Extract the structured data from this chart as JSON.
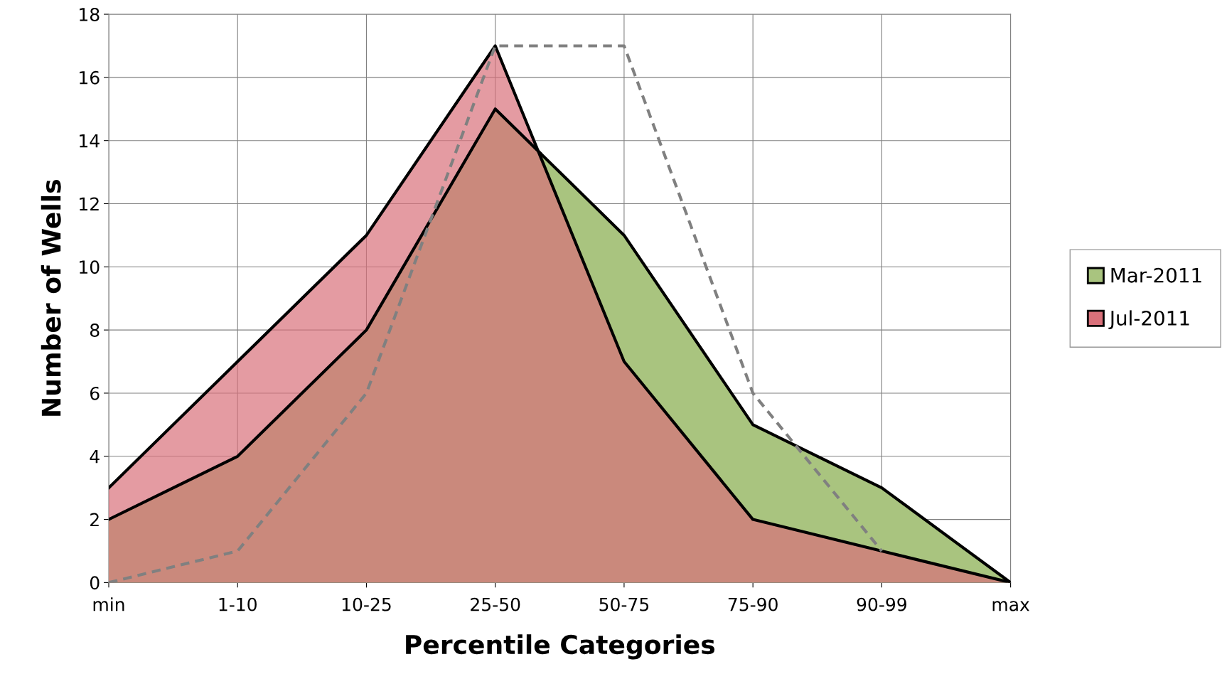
{
  "chart_data": {
    "type": "area",
    "xlabel": "Percentile Categories",
    "ylabel": "Number of Wells",
    "categories": [
      "min",
      "1-10",
      "10-25",
      "25-50",
      "50-75",
      "75-90",
      "90-99",
      "max"
    ],
    "series": [
      {
        "name": "Mar-2011",
        "color": "#a9c47f",
        "values": [
          2,
          4,
          8,
          15,
          11,
          5,
          3,
          0
        ]
      },
      {
        "name": "Jul-2011",
        "color": "#d9707a",
        "values": [
          3,
          7,
          11,
          17,
          7,
          2,
          1,
          0
        ]
      },
      {
        "type": "line",
        "color": "#808080",
        "line_style": "dashed",
        "values": [
          0,
          1,
          6,
          17,
          17,
          6,
          1,
          null
        ]
      }
    ],
    "ylim": [
      0,
      18
    ],
    "yticks": [
      0,
      2,
      4,
      6,
      8,
      10,
      12,
      14,
      16,
      18
    ],
    "grid": true,
    "legend": "right"
  }
}
